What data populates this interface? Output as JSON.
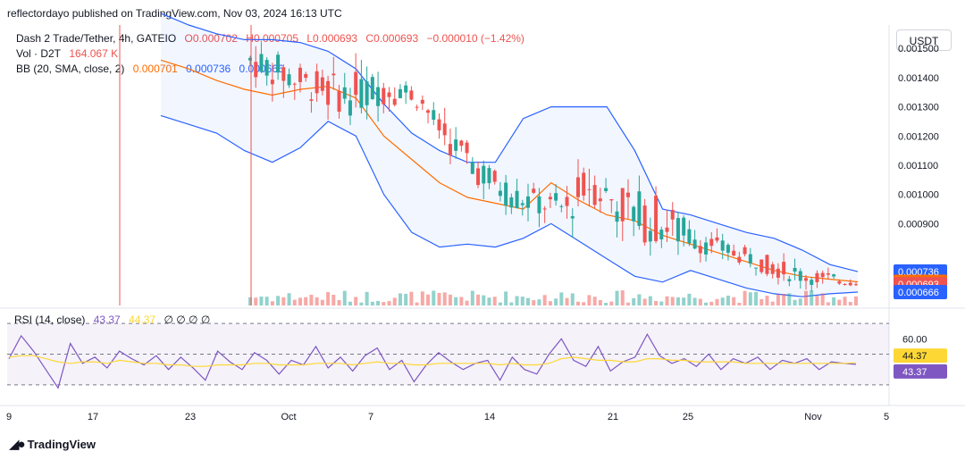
{
  "header": {
    "publisher": "reflectordayo published on TradingView.com, Nov 03, 2024 16:13 UTC"
  },
  "currency_button": "USDT",
  "legend": {
    "symbol": "Dash 2 Trade/Tether, 4h, GATEIO",
    "open": "O0.000702",
    "high": "H0.000705",
    "low": "L0.000693",
    "close": "C0.000693",
    "change": "−0.000010 (−1.42%)",
    "vol_label": "Vol · D2T",
    "vol_value": "164.067 K",
    "bb_label": "BB (20, SMA, close, 2)",
    "bb_mid": "0.000701",
    "bb_upper": "0.000736",
    "bb_lower": "0.000666"
  },
  "rsi_legend": {
    "label": "RSI (14, close)",
    "value": "43.37",
    "ma_value": "44.37",
    "extras": "∅ ∅ ∅ ∅"
  },
  "colors": {
    "up": "#26a69a",
    "down": "#ef5350",
    "bb_band": "#2962ff",
    "bb_mid": "#ff6d00",
    "rsi": "#7e57c2",
    "rsi_ma": "#fdd835",
    "text": "#131722"
  },
  "footer": {
    "brand": "TradingView"
  },
  "chart_data": [
    {
      "type": "candlestick",
      "title": "Dash 2 Trade/Tether, 4h, GATEIO",
      "y_ticks": [
        "0.001500",
        "0.001400",
        "0.001300",
        "0.001200",
        "0.001100",
        "0.001000",
        "0.000900"
      ],
      "ylim": [
        0.00062,
        0.00158
      ],
      "x_ticks": [
        "9",
        "17",
        "23",
        "Oct",
        "7",
        "14",
        "21",
        "25",
        "Nov",
        "5"
      ],
      "price_labels": {
        "bb_upper": "0.000736",
        "bb_mid": "0.000701",
        "last": "0.000693",
        "bb_lower": "0.000666"
      },
      "bb_upper": [
        0.00162,
        0.00158,
        0.00155,
        0.00153,
        0.00153,
        0.00152,
        0.00149,
        0.00143,
        0.00131,
        0.00121,
        0.00115,
        0.00111,
        0.00111,
        0.00126,
        0.0013,
        0.0013,
        0.0013,
        0.00115,
        0.00095,
        0.00093,
        0.0009,
        0.00087,
        0.00085,
        0.00081,
        0.00076,
        0.000736
      ],
      "bb_mid": [
        0.00146,
        0.00143,
        0.00139,
        0.00136,
        0.00134,
        0.00136,
        0.00137,
        0.00133,
        0.0012,
        0.00112,
        0.00104,
        0.00099,
        0.00097,
        0.00095,
        0.00104,
        0.00098,
        0.00093,
        0.00091,
        0.00086,
        0.00083,
        0.0008,
        0.00077,
        0.00074,
        0.00072,
        0.00071,
        0.000701
      ],
      "bb_lower": [
        0.00127,
        0.00124,
        0.00121,
        0.00115,
        0.00111,
        0.00116,
        0.00125,
        0.0012,
        0.001,
        0.00087,
        0.00082,
        0.00083,
        0.00082,
        0.00085,
        0.0009,
        0.00084,
        0.00078,
        0.00072,
        0.0007,
        0.00074,
        0.00071,
        0.00068,
        0.00066,
        0.00065,
        0.00066,
        0.000666
      ],
      "volume_label": "164.067 K"
    },
    {
      "type": "line",
      "title": "RSI (14, close)",
      "y_ticks": [
        "60.00",
        "44.37",
        "43.37"
      ],
      "ylim": [
        20,
        80
      ],
      "levels": [
        70,
        50,
        30
      ],
      "rsi": [
        47,
        62,
        52,
        40,
        28,
        57,
        44,
        48,
        41,
        52,
        47,
        43,
        49,
        40,
        48,
        41,
        33,
        52,
        45,
        40,
        51,
        46,
        37,
        46,
        43,
        55,
        41,
        48,
        39,
        49,
        54,
        40,
        46,
        32,
        43,
        51,
        45,
        40,
        44,
        46,
        33,
        48,
        40,
        37,
        50,
        60,
        46,
        42,
        55,
        39,
        45,
        48,
        63,
        49,
        44,
        47,
        42,
        50,
        40,
        47,
        44,
        48,
        40,
        46,
        44,
        47,
        40,
        45,
        44,
        43.37
      ],
      "rsi_ma": [
        48,
        49,
        49,
        47,
        45,
        44,
        45,
        45,
        44,
        46,
        45,
        44,
        44,
        43,
        43,
        42,
        42,
        43,
        43,
        43,
        44,
        44,
        43,
        43,
        43,
        44,
        44,
        44,
        43,
        44,
        45,
        44,
        44,
        43,
        43,
        44,
        44,
        44,
        44,
        44,
        43,
        44,
        43,
        43,
        44,
        47,
        48,
        47,
        46,
        46,
        45,
        45,
        47,
        47,
        46,
        46,
        45,
        45,
        45,
        45,
        44,
        44,
        44,
        44,
        44,
        44,
        44,
        44,
        44,
        44.37
      ]
    }
  ]
}
